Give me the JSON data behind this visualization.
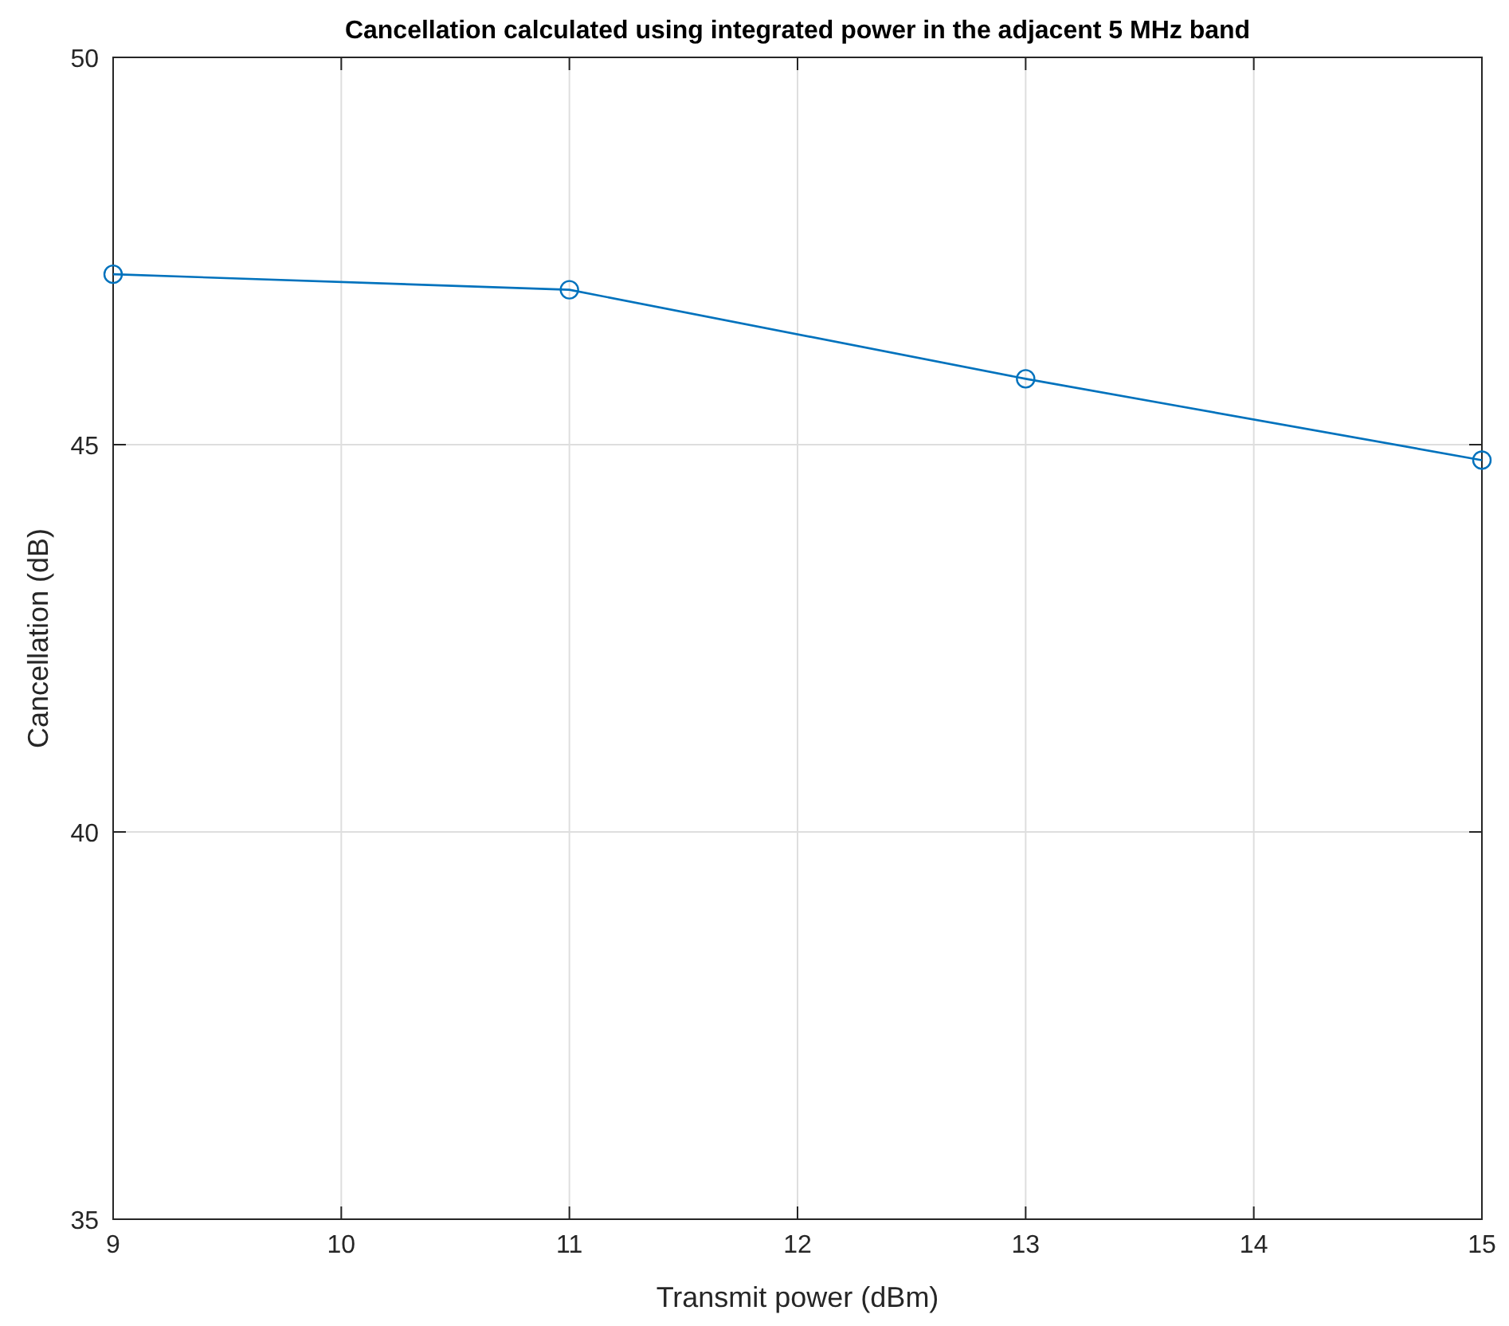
{
  "chart_data": {
    "type": "line",
    "title": "Cancellation calculated using integrated power in the adjacent 5 MHz band",
    "xlabel": "Transmit power (dBm)",
    "ylabel": "Cancellation (dB)",
    "x": [
      9,
      11,
      13,
      15
    ],
    "series": [
      {
        "color": "#0072bd",
        "values": [
          47.2,
          47.0,
          45.85,
          44.8
        ]
      }
    ],
    "xlim": [
      9,
      15
    ],
    "xticks": [
      9,
      10,
      11,
      12,
      13,
      14,
      15
    ],
    "ylim": [
      35,
      50
    ],
    "yticks": [
      35,
      40,
      45,
      50
    ],
    "grid": true,
    "marker": "circle",
    "line_style": "solid"
  }
}
